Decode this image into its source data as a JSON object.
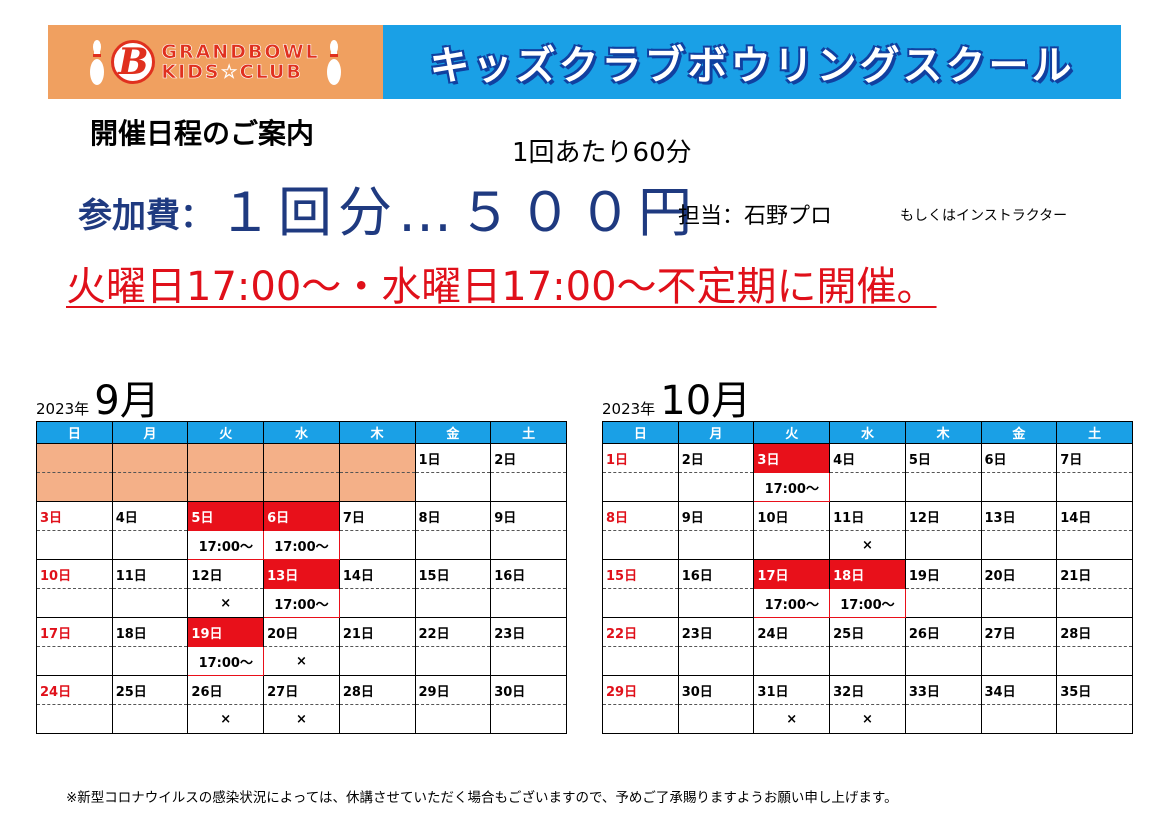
{
  "header": {
    "logo_line1": "GRANDBOWL",
    "logo_line2": "KIDS☆CLUB",
    "logo_mark": "B",
    "title": "キッズクラブボウリングスクール"
  },
  "intro": {
    "guide_title": "開催日程のご案内",
    "per_session": "1回あたり60分",
    "fee_label": "参加費：",
    "fee_amount": "１回分…５００円",
    "staff": "担当：石野プロ",
    "staff_sub": "もしくはインストラクター",
    "schedule_note": "火曜日17:00〜・水曜日17:00〜不定期に開催。"
  },
  "weekdays": [
    "日",
    "月",
    "火",
    "水",
    "木",
    "金",
    "土"
  ],
  "calendars": [
    {
      "year": "2023年",
      "month": "9月",
      "weeks": [
        {
          "days": [
            "",
            "",
            "",
            "",
            "",
            "1日",
            "2日"
          ],
          "times": [
            "",
            "",
            "",
            "",
            "",
            "",
            ""
          ],
          "blank": [
            0,
            1,
            2,
            3,
            4
          ]
        },
        {
          "days": [
            "3日",
            "4日",
            "5日",
            "6日",
            "7日",
            "8日",
            "9日"
          ],
          "times": [
            "",
            "",
            "17:00〜",
            "17:00〜",
            "",
            "",
            ""
          ],
          "events": [
            2,
            3
          ]
        },
        {
          "days": [
            "10日",
            "11日",
            "12日",
            "13日",
            "14日",
            "15日",
            "16日"
          ],
          "times": [
            "",
            "",
            "×",
            "17:00〜",
            "",
            "",
            ""
          ],
          "events": [
            3
          ]
        },
        {
          "days": [
            "17日",
            "18日",
            "19日",
            "20日",
            "21日",
            "22日",
            "23日"
          ],
          "times": [
            "",
            "",
            "17:00〜",
            "×",
            "",
            "",
            ""
          ],
          "events": [
            2
          ]
        },
        {
          "days": [
            "24日",
            "25日",
            "26日",
            "27日",
            "28日",
            "29日",
            "30日"
          ],
          "times": [
            "",
            "",
            "×",
            "×",
            "",
            "",
            ""
          ],
          "events": []
        }
      ]
    },
    {
      "year": "2023年",
      "month": "10月",
      "weeks": [
        {
          "days": [
            "1日",
            "2日",
            "3日",
            "4日",
            "5日",
            "6日",
            "7日"
          ],
          "times": [
            "",
            "",
            "17:00〜",
            "",
            "",
            "",
            ""
          ],
          "events": [
            2
          ]
        },
        {
          "days": [
            "8日",
            "9日",
            "10日",
            "11日",
            "12日",
            "13日",
            "14日"
          ],
          "times": [
            "",
            "",
            "",
            "×",
            "",
            "",
            ""
          ],
          "events": []
        },
        {
          "days": [
            "15日",
            "16日",
            "17日",
            "18日",
            "19日",
            "20日",
            "21日"
          ],
          "times": [
            "",
            "",
            "17:00〜",
            "17:00〜",
            "",
            "",
            ""
          ],
          "events": [
            2,
            3
          ]
        },
        {
          "days": [
            "22日",
            "23日",
            "24日",
            "25日",
            "26日",
            "27日",
            "28日"
          ],
          "times": [
            "",
            "",
            "",
            "",
            "",
            "",
            ""
          ],
          "events": []
        },
        {
          "days": [
            "29日",
            "30日",
            "31日",
            "32日",
            "33日",
            "34日",
            "35日"
          ],
          "times": [
            "",
            "",
            "×",
            "×",
            "",
            "",
            ""
          ],
          "events": []
        }
      ]
    }
  ],
  "footnote": "※新型コロナウイルスの感染状況によっては、休講させていただく場合もございますので、予めご了承賜りますようお願い申し上げます。"
}
